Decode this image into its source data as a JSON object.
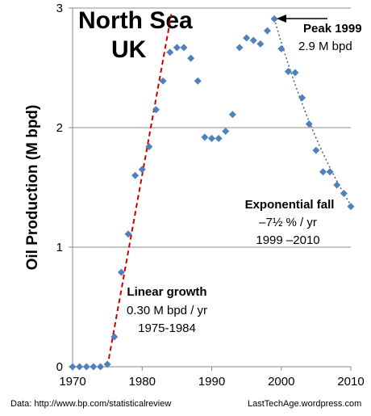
{
  "chart_data": {
    "type": "scatter",
    "title_line1": "North Sea",
    "title_line2": "UK",
    "ylabel": "Oil Production (M bpd)",
    "xlabel": "",
    "xlim": [
      1970,
      2010
    ],
    "ylim": [
      0,
      3
    ],
    "x_ticks": [
      "1970",
      "1980",
      "1990",
      "2000",
      "2010"
    ],
    "y_ticks": [
      "0",
      "1",
      "2",
      "3"
    ],
    "grid": "horizontal",
    "marker_color": "#4f81bd",
    "series": [
      {
        "x": [
          1970,
          1971,
          1972,
          1973,
          1974,
          1975,
          1976,
          1977,
          1978,
          1979,
          1980,
          1981,
          1982,
          1983,
          1984,
          1985,
          1986,
          1987,
          1988,
          1989,
          1990,
          1991,
          1992,
          1993,
          1994,
          1995,
          1996,
          1997,
          1998,
          1999,
          2000,
          2001,
          2002,
          2003,
          2004,
          2005,
          2006,
          2007,
          2008,
          2009,
          2010
        ],
        "y": [
          0.0,
          0.0,
          0.0,
          0.0,
          0.0,
          0.02,
          0.25,
          0.79,
          1.11,
          1.6,
          1.65,
          1.84,
          2.15,
          2.39,
          2.63,
          2.67,
          2.67,
          2.58,
          2.39,
          1.92,
          1.91,
          1.91,
          1.97,
          2.11,
          2.67,
          2.75,
          2.73,
          2.7,
          2.81,
          2.91,
          2.66,
          2.47,
          2.46,
          2.25,
          2.03,
          1.81,
          1.63,
          1.63,
          1.52,
          1.45,
          1.34
        ]
      }
    ],
    "linear_fit": {
      "color": "#cc0000",
      "x": [
        1975,
        1984.2
      ],
      "y": [
        0.0,
        2.95
      ]
    },
    "exp_fit": {
      "color": "#4a5f82",
      "x": [
        1999,
        2010
      ],
      "y": [
        2.91,
        1.35
      ]
    },
    "annotations": {
      "peak_l1": "Peak 1999",
      "peak_l2": "2.9 M bpd",
      "exp_l1": "Exponential fall",
      "exp_l2": "–7½ % / yr",
      "exp_l3": "1999 –2010",
      "lin_l1": "Linear growth",
      "lin_l2": "0.30 M bpd / yr",
      "lin_l3": "1975-1984"
    },
    "footer_left": "Data: http://www.bp.com/statisticalreview",
    "footer_right": "LastTechAge.wordpress.com"
  }
}
